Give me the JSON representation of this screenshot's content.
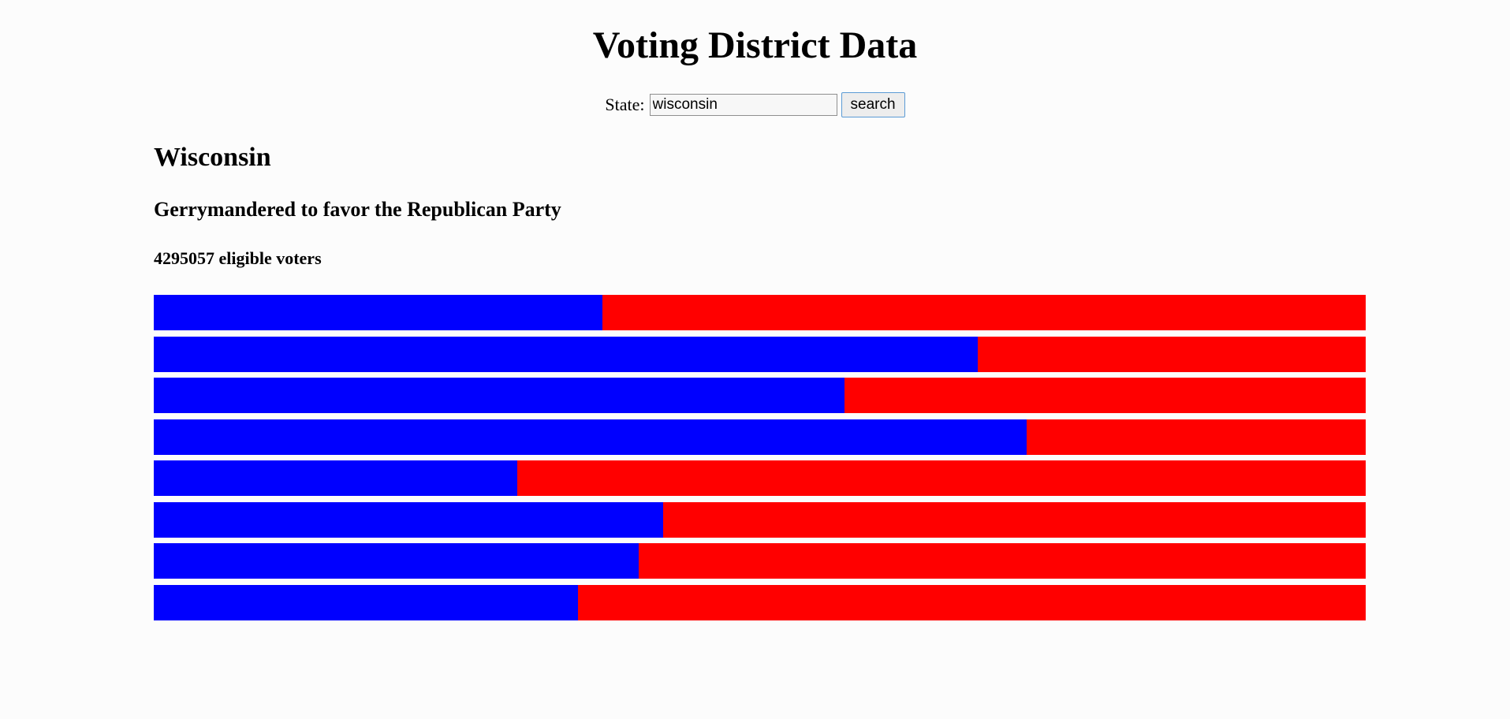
{
  "header": {
    "title": "Voting District Data"
  },
  "search": {
    "label": "State:",
    "value": "wisconsin",
    "button_label": "search"
  },
  "result": {
    "state": "Wisconsin",
    "verdict": "Gerrymandered to favor the Republican Party",
    "voters_text": "4295057 eligible voters"
  },
  "colors": {
    "democrat": "#0000ff",
    "republican": "#ff0000"
  },
  "districts": [
    {
      "dem_share": 0.37
    },
    {
      "dem_share": 0.68
    },
    {
      "dem_share": 0.57
    },
    {
      "dem_share": 0.72
    },
    {
      "dem_share": 0.3
    },
    {
      "dem_share": 0.42
    },
    {
      "dem_share": 0.4
    },
    {
      "dem_share": 0.35
    }
  ]
}
